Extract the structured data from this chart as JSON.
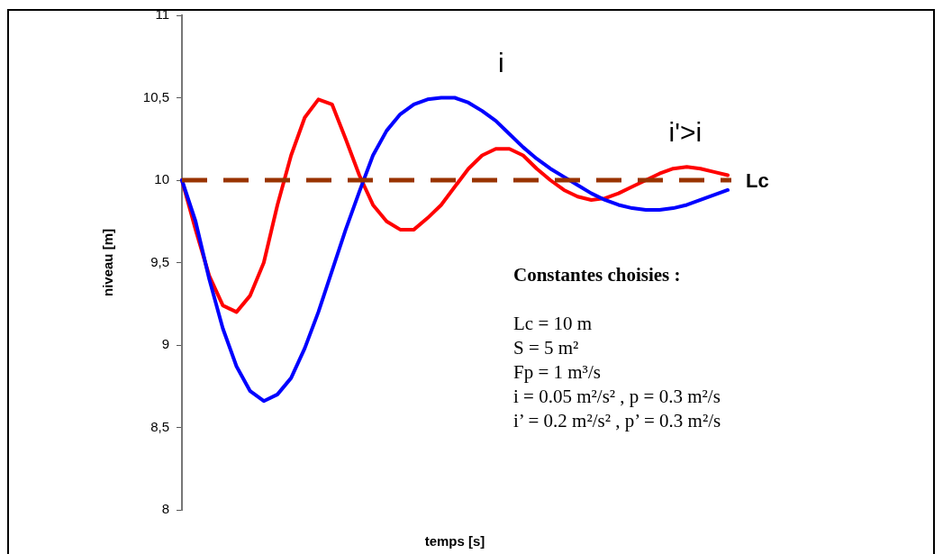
{
  "chart_data": {
    "type": "line",
    "xlabel": "temps [s]",
    "ylabel": "niveau [m]",
    "categories": [
      null,
      null,
      null,
      null,
      null,
      null,
      null,
      null,
      null,
      null,
      null,
      null,
      null,
      null,
      null,
      null,
      null,
      null,
      null,
      null,
      null,
      null,
      null,
      null,
      null,
      null,
      null,
      null,
      null,
      null,
      null,
      null,
      null,
      null,
      null,
      null,
      null,
      null,
      null,
      null,
      null
    ],
    "series": [
      {
        "name": "i",
        "color": "#0000ff",
        "values": [
          10,
          9.75,
          9.4,
          9.1,
          8.87,
          8.72,
          8.66,
          8.7,
          8.8,
          8.98,
          9.2,
          9.45,
          9.7,
          9.93,
          10.15,
          10.3,
          10.4,
          10.46,
          10.49,
          10.5,
          10.5,
          10.47,
          10.42,
          10.36,
          10.28,
          10.2,
          10.13,
          10.07,
          10.02,
          9.97,
          9.92,
          9.88,
          9.85,
          9.83,
          9.82,
          9.82,
          9.83,
          9.85,
          9.88,
          9.91,
          9.94
        ]
      },
      {
        "name": "i'>i",
        "color": "#ff0000",
        "values": [
          10,
          9.7,
          9.42,
          9.24,
          9.2,
          9.3,
          9.5,
          9.85,
          10.15,
          10.38,
          10.49,
          10.46,
          10.25,
          10.03,
          9.85,
          9.75,
          9.7,
          9.7,
          9.77,
          9.85,
          9.96,
          10.07,
          10.15,
          10.19,
          10.19,
          10.15,
          10.07,
          10,
          9.94,
          9.9,
          9.88,
          9.89,
          9.92,
          9.96,
          10,
          10.04,
          10.07,
          10.08,
          10.07,
          10.05,
          10.03
        ]
      }
    ],
    "ylim": [
      8,
      11
    ],
    "yticks": [
      8,
      {
        "value": 8.5,
        "label": "8,5"
      },
      9,
      {
        "value": 9.5,
        "label": "9,5"
      },
      10,
      {
        "value": 10.5,
        "label": "10,5"
      },
      11
    ],
    "ref_lines": [
      {
        "axis": "y",
        "value": 10,
        "label": "Lc",
        "color": "#993300",
        "line_style": "dashed"
      }
    ],
    "annotations": [
      "Constantes choisies :",
      "Lc = 10 m",
      "S = 5 m²",
      "Fp = 1 m³/s",
      "i = 0.05 m²/s² ,  p = 0.3 m²/s",
      "i’ = 0.2 m²/s² ,  p’ = 0.3 m²/s"
    ],
    "tick_labels": "y",
    "legend": false,
    "grid": false,
    "line_style": "solid",
    "marker": "none"
  }
}
